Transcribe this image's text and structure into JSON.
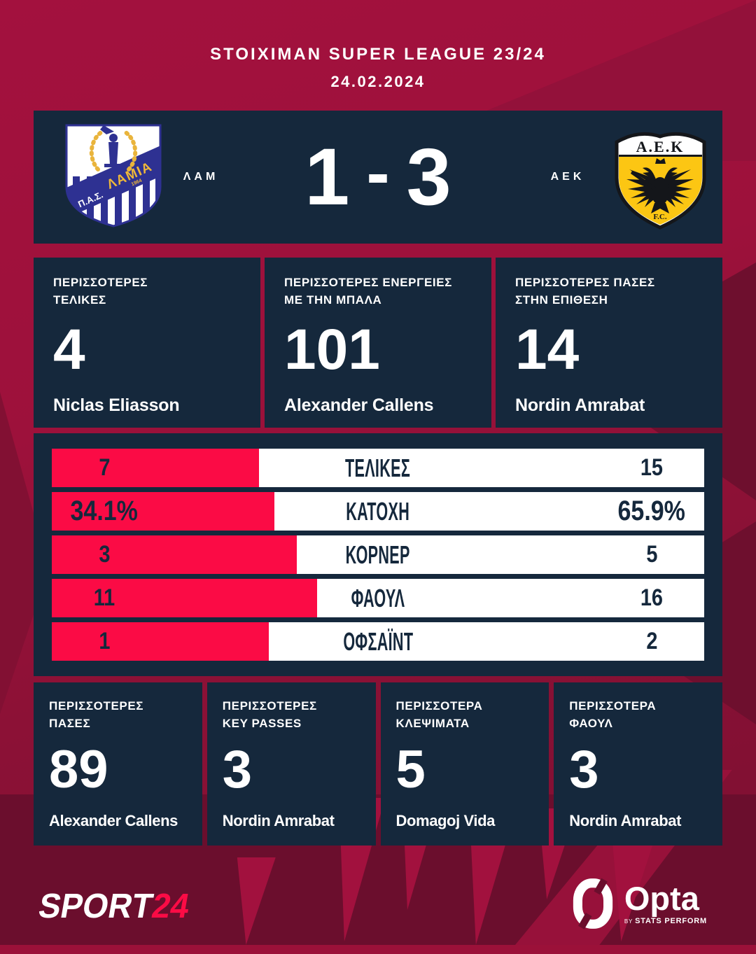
{
  "header": {
    "league": "STOIXIMAN SUPER LEAGUE 23/24",
    "date": "24.02.2024"
  },
  "scoreboard": {
    "home_abbr": "ΛΑΜ",
    "away_abbr": "AEK",
    "home_score": "1",
    "separator": "-",
    "away_score": "3"
  },
  "logos": {
    "lamia": {
      "initials": "Π.Α.Σ.",
      "band_text": "ΛΑΜΙΑ",
      "year": "1964"
    },
    "aek": {
      "monogram": "Α.Ε.Κ",
      "fc": "F.C."
    }
  },
  "top_stats": [
    {
      "label": "ΠΕΡΙΣΣΟΤΕΡΕΣ\nΤΕΛΙΚΕΣ",
      "value": "4",
      "player": "Niclas Eliasson"
    },
    {
      "label": "ΠΕΡΙΣΣΟΤΕΡΕΣ ΕΝΕΡΓΕΙΕΣ\nΜΕ ΤΗΝ ΜΠΑΛΑ",
      "value": "101",
      "player": "Alexander Callens"
    },
    {
      "label": "ΠΕΡΙΣΣΟΤΕΡΕΣ ΠΑΣΕΣ\nΣΤΗΝ ΕΠΙΘΕΣΗ",
      "value": "14",
      "player": "Nordin Amrabat"
    }
  ],
  "chart_data": {
    "type": "bar",
    "orientation": "horizontal-split",
    "home_team": "ΛΑΜ",
    "away_team": "ΑΕΚ",
    "home_color": "#fb0b45",
    "away_color": "#ffffff",
    "categories": [
      "ΤΕΛΙΚΕΣ",
      "ΚΑΤΟΧΗ",
      "ΚΟΡΝΕΡ",
      "ΦΑΟΥΛ",
      "ΟΦΣΑΪΝΤ"
    ],
    "rows": [
      {
        "label": "ΤΕΛΙΚΕΣ",
        "home_value": 7,
        "away_value": 15,
        "home_display": "7",
        "away_display": "15"
      },
      {
        "label": "ΚΑΤΟΧΗ",
        "home_value": 34.1,
        "away_value": 65.9,
        "home_display": "34.1%",
        "away_display": "65.9%",
        "emphasis": true
      },
      {
        "label": "ΚΟΡΝΕΡ",
        "home_value": 3,
        "away_value": 5,
        "home_display": "3",
        "away_display": "5"
      },
      {
        "label": "ΦΑΟΥΛ",
        "home_value": 11,
        "away_value": 16,
        "home_display": "11",
        "away_display": "16"
      },
      {
        "label": "ΟΦΣΑΪΝΤ",
        "home_value": 1,
        "away_value": 2,
        "home_display": "1",
        "away_display": "2"
      }
    ]
  },
  "bottom_stats": [
    {
      "label": "ΠΕΡΙΣΣΟΤΕΡΕΣ\nΠΑΣΕΣ",
      "value": "89",
      "player": "Alexander Callens"
    },
    {
      "label": "ΠΕΡΙΣΣΟΤΕΡΕΣ\nKEY PASSES",
      "value": "3",
      "player": "Nordin Amrabat"
    },
    {
      "label": "ΠΕΡΙΣΣΟΤΕΡΑ\nΚΛΕΨΙΜΑΤΑ",
      "value": "5",
      "player": "Domagoj Vida"
    },
    {
      "label": "ΠΕΡΙΣΣΟΤΕΡΑ\nΦΑΟΥΛ",
      "value": "3",
      "player": "Nordin Amrabat"
    }
  ],
  "footer": {
    "sport24": {
      "text": "SPORT",
      "number": "24"
    },
    "opta": {
      "name": "Opta",
      "by": "BY",
      "byline": "STATS PERFORM"
    }
  },
  "colors": {
    "panel_navy": "#15283c",
    "bar_red": "#fb0b45",
    "bg_bright": "#a2113e",
    "bg_dark": "#6b0e2d",
    "aek_yellow": "#fcc613",
    "lamia_blue": "#2e3192",
    "gold": "#e9b43c"
  }
}
